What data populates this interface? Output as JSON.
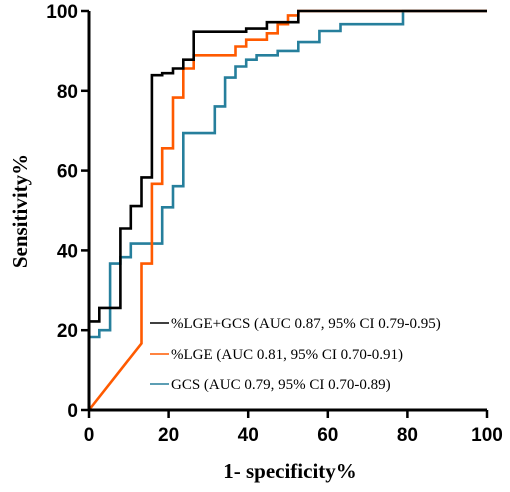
{
  "chart_data": {
    "type": "line",
    "title": "",
    "xlabel": "1- specificity%",
    "ylabel": "Sensitivity%",
    "xlim": [
      0,
      100
    ],
    "ylim": [
      0,
      100
    ],
    "x_ticks": [
      "0",
      "20",
      "40",
      "60",
      "80",
      "100"
    ],
    "y_ticks": [
      "0",
      "20",
      "40",
      "60",
      "80",
      "100"
    ],
    "grid": false,
    "legend_position": "bottom-center",
    "series": [
      {
        "name": "%LGE+GCS (AUC 0.87, 95% CI 0.79-0.95)",
        "color": "#000000",
        "x": [
          0,
          0,
          2.6,
          2.6,
          7.9,
          7.9,
          10.5,
          10.5,
          13.2,
          13.2,
          15.8,
          15.8,
          18.4,
          18.4,
          21.1,
          21.1,
          23.7,
          23.7,
          26.3,
          26.3,
          39.5,
          39.5,
          44.7,
          44.7,
          52.6,
          52.6,
          100
        ],
        "y": [
          0,
          22.2,
          22.2,
          25.6,
          25.6,
          45.5,
          45.5,
          51.1,
          51.1,
          58.3,
          58.3,
          83.9,
          83.9,
          84.4,
          84.4,
          85.6,
          85.6,
          87.8,
          87.8,
          94.8,
          94.8,
          95.6,
          95.6,
          97.2,
          97.2,
          100,
          100
        ]
      },
      {
        "name": "%LGE  (AUC 0.81, 95% CI 0.70-0.91)",
        "color": "#ff5a00",
        "x": [
          0,
          13.2,
          13.2,
          15.8,
          15.8,
          18.4,
          18.4,
          21.1,
          21.1,
          23.7,
          23.7,
          26.3,
          26.3,
          28.9,
          28.9,
          36.8,
          36.8,
          39.5,
          39.5,
          44.7,
          44.7,
          47.4,
          47.4,
          50,
          50,
          52.6,
          52.6,
          100
        ],
        "y": [
          0,
          16.7,
          36.7,
          36.7,
          56.7,
          56.7,
          65.6,
          65.6,
          78.3,
          78.3,
          85.6,
          85.6,
          88.9,
          88.9,
          88.9,
          88.9,
          91.1,
          91.1,
          92.8,
          92.8,
          94.4,
          94.4,
          96.7,
          96.7,
          98.9,
          98.9,
          100,
          100
        ]
      },
      {
        "name": "GCS  (AUC 0.79, 95% CI 0.70-0.89)",
        "color": "#267f9c",
        "x": [
          0,
          0,
          2.6,
          2.6,
          5.3,
          5.3,
          7.9,
          7.9,
          10.5,
          10.5,
          18.4,
          18.4,
          21.1,
          21.1,
          23.7,
          23.7,
          31.6,
          31.6,
          34.2,
          34.2,
          36.8,
          36.8,
          39.5,
          39.5,
          42.1,
          42.1,
          47.4,
          47.4,
          52.6,
          52.6,
          57.9,
          57.9,
          63.2,
          63.2,
          78.9,
          78.9,
          100
        ],
        "y": [
          0,
          18.3,
          18.3,
          20,
          20,
          36.7,
          36.7,
          38.3,
          38.3,
          41.7,
          41.7,
          50.8,
          50.8,
          56.1,
          56.1,
          69.4,
          69.4,
          76.1,
          76.1,
          83.3,
          83.3,
          86.1,
          86.1,
          87.8,
          87.8,
          88.9,
          88.9,
          90,
          90,
          92.2,
          92.2,
          95,
          95,
          96.7,
          96.7,
          100,
          100
        ]
      }
    ]
  }
}
